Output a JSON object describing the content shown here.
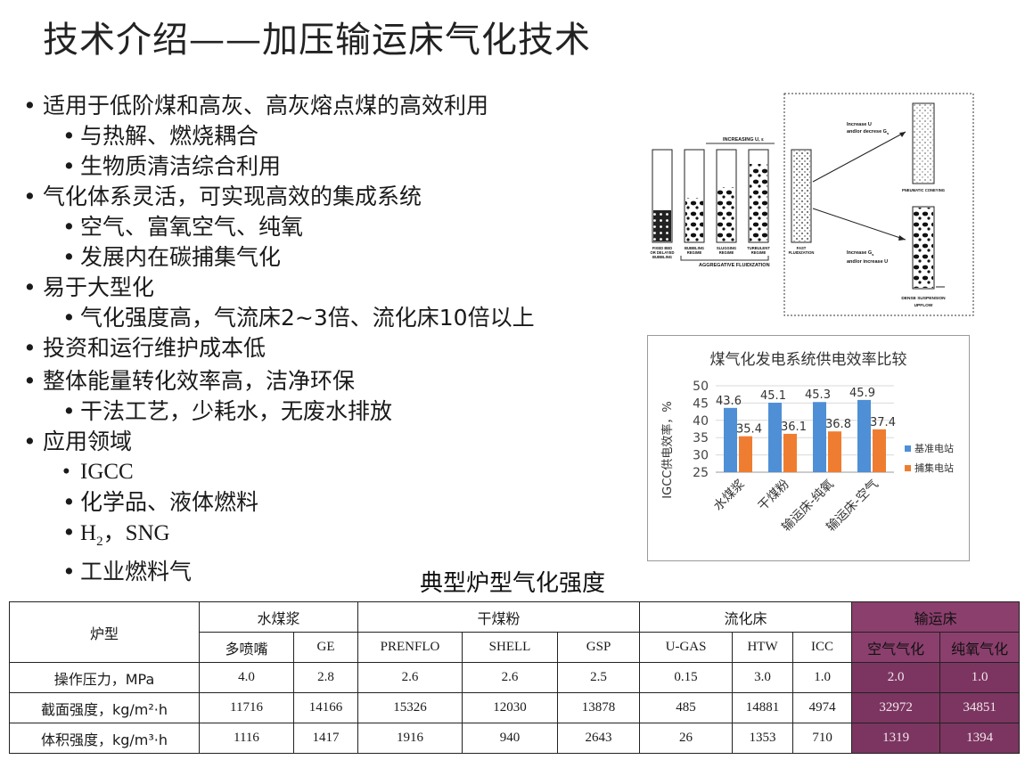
{
  "title": "技术介绍——加压输运床气化技术",
  "bullets": [
    {
      "text": "适用于低阶煤和高灰、高灰熔点煤的高效利用",
      "sub": [
        "与热解、燃烧耦合",
        "生物质清洁综合利用"
      ]
    },
    {
      "text": "气化体系灵活，可实现高效的集成系统",
      "sub": [
        "空气、富氧空气、纯氧",
        "发展内在碳捕集气化"
      ]
    },
    {
      "text": "易于大型化",
      "sub": [
        "气化强度高，气流床2~3倍、流化床10倍以上"
      ]
    },
    {
      "text": "投资和运行维护成本低",
      "sub": []
    },
    {
      "text": "整体能量转化效率高，洁净环保",
      "sub": [
        "干法工艺，少耗水，无废水排放"
      ]
    },
    {
      "text": "应用领域",
      "sub": [
        "IGCC",
        "化学品、液体燃料",
        "",
        "工业燃料气"
      ]
    }
  ],
  "h2_item": {
    "h": "H",
    "sub": "2",
    "rest": "，SNG"
  },
  "schematic": {
    "increasing": "INCREASING U, ε",
    "regimes": [
      "FIXED BED OR DELAYED BUBBLING",
      "BUBBLING REGIME",
      "SLUGGING REGIME",
      "TURBULENT REGIME",
      "FAST FLUIDIZATION"
    ],
    "aggregative": "AGGREGATIVE FLUIDIZATION",
    "upper_label_1": "Increase U",
    "upper_label_2": "and/or decrese G",
    "upper_label_sub": "s",
    "pneumatic": "PNEUMATIC CONEYING",
    "lower_label_1": "Increase G",
    "lower_label_sub": "s",
    "lower_label_2": "and/or increase U",
    "dense_1": "DENSE SUSPENSION",
    "dense_2": "UPFLOW"
  },
  "chart_data": {
    "type": "bar",
    "title": "煤气化发电系统供电效率比较",
    "ylabel": "IGCC供电效率，%",
    "categories": [
      "水煤浆",
      "干煤粉",
      "输运床-纯氧",
      "输运床-空气"
    ],
    "series": [
      {
        "name": "基准电站",
        "values": [
          43.6,
          45.1,
          45.3,
          45.9
        ],
        "color": "#4f8fd6"
      },
      {
        "name": "捕集电站",
        "values": [
          35.4,
          36.1,
          36.8,
          37.4
        ],
        "color": "#ef7d31"
      }
    ],
    "ylim": [
      25,
      50
    ],
    "yticks": [
      "25",
      "30",
      "35",
      "40",
      "45",
      "50"
    ],
    "legend": "right"
  },
  "table": {
    "caption": "典型炉型气化强度",
    "corner": "炉型",
    "groups": [
      "水煤浆",
      "干煤粉",
      "流化床",
      "输运床"
    ],
    "subheads": [
      "多喷嘴",
      "GE",
      "PRENFLO",
      "SHELL",
      "GSP",
      "U-GAS",
      "HTW",
      "ICC",
      "空气气化",
      "纯氧气化"
    ],
    "rows": [
      {
        "label": "操作压力，MPa",
        "values": [
          "4.0",
          "2.8",
          "2.6",
          "2.6",
          "2.5",
          "0.15",
          "3.0",
          "1.0",
          "2.0",
          "1.0"
        ]
      },
      {
        "label": "截面强度，kg/m²·h",
        "values": [
          "11716",
          "14166",
          "15326",
          "12030",
          "13878",
          "485",
          "14881",
          "4974",
          "32972",
          "34851"
        ]
      },
      {
        "label": "体积强度，kg/m³·h",
        "values": [
          "1116",
          "1417",
          "1916",
          "940",
          "2643",
          "26",
          "1353",
          "710",
          "1319",
          "1394"
        ]
      }
    ]
  },
  "colors": {
    "highlight": "#7b3560",
    "bar_base": "#4f8fd6",
    "bar_capture": "#ef7d31"
  }
}
